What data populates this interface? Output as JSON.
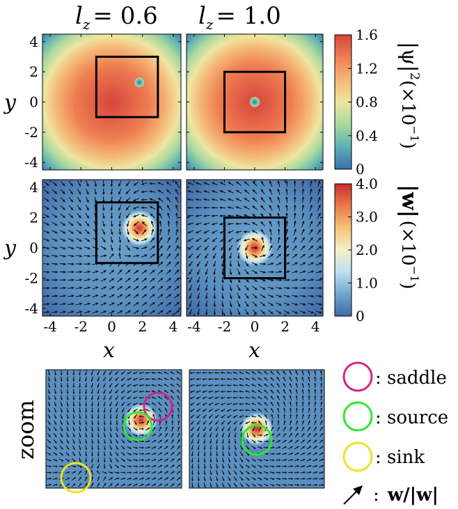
{
  "columns": {
    "left_label": "l",
    "left_sub": "z",
    "left_value": "= 0.6",
    "right_label": "l",
    "right_sub": "z",
    "right_value": "= 1.0"
  },
  "axes": {
    "xlabel": "x",
    "ylabel": "y",
    "ticks": [
      "-4",
      "-2",
      "0",
      "2",
      "4"
    ],
    "range": [
      -4.5,
      4.5
    ]
  },
  "colorbars": {
    "density": {
      "label_main": "|ψ|",
      "label_sup": "2",
      "label_factor": "(×10",
      "label_exp": "−1",
      "label_close": ")",
      "ticks": [
        "1.6",
        "1.2",
        "0.8",
        "0.4",
        "0"
      ],
      "range": [
        0,
        1.6
      ],
      "colors": [
        "#3b6ea8",
        "#5fb0b4",
        "#a9d9a0",
        "#eee6a0",
        "#f5b878",
        "#ef7f52",
        "#d7443c"
      ]
    },
    "flow": {
      "label_main": "|w|",
      "label_factor": "(×10",
      "label_exp": "−1",
      "label_close": ")",
      "ticks": [
        "4.0",
        "3.0",
        "2.0",
        "1.0",
        "0"
      ],
      "range": [
        0,
        4.0
      ],
      "colors": [
        "#3f69a6",
        "#6fa6cf",
        "#bfe0ef",
        "#f3f1c8",
        "#f6c27a",
        "#ea7a4c",
        "#c8302f"
      ]
    }
  },
  "panels": [
    {
      "id": "density-left",
      "vortex": [
        1.8,
        1.3
      ],
      "box": [
        -1,
        3,
        -1,
        3
      ]
    },
    {
      "id": "density-right",
      "vortex": [
        0,
        0
      ],
      "box": [
        -2,
        2,
        -2,
        2
      ]
    },
    {
      "id": "flow-left",
      "vortex": [
        1.8,
        1.3
      ],
      "sink": [
        -0.1,
        -0.2
      ],
      "box": [
        -1,
        3,
        -1,
        3
      ]
    },
    {
      "id": "flow-right",
      "vortex": [
        0,
        0
      ],
      "box": [
        -2,
        2,
        -2,
        2
      ]
    }
  ],
  "zoom": {
    "row_label": "zoom"
  },
  "legend": {
    "saddle": {
      "label": ": saddle",
      "color": "#d9218a"
    },
    "source": {
      "label": ": source",
      "color": "#2ee82e"
    },
    "sink": {
      "label": ": sink",
      "color": "#f0e020"
    },
    "arrow": {
      "label_colon": ":",
      "label_main": "w/|w|"
    }
  }
}
